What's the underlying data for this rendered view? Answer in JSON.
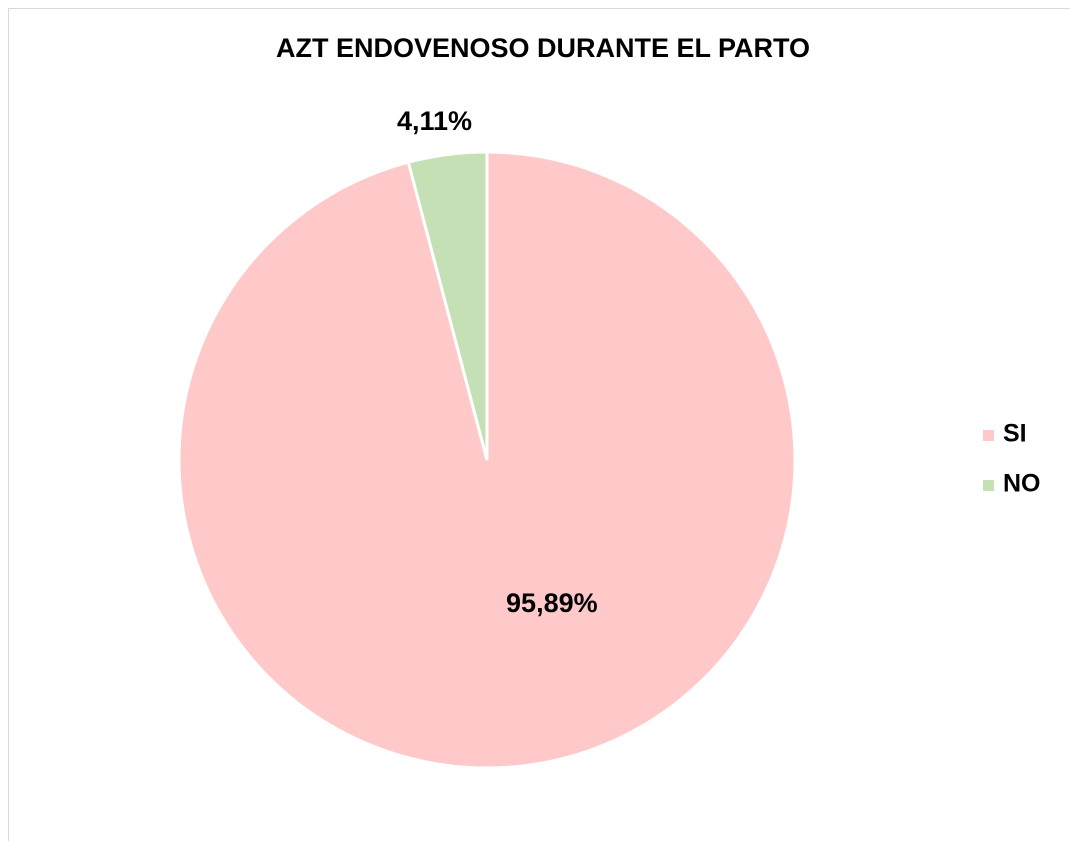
{
  "chart_data": {
    "type": "pie",
    "title": "AZT ENDOVENOSO DURANTE EL PARTO",
    "categories": [
      "SI",
      "NO"
    ],
    "values": [
      95.89,
      4.11
    ],
    "value_labels": [
      "95,89%",
      "4,11%"
    ],
    "colors": [
      "#ffc9c9",
      "#c5e0b4"
    ],
    "legend": "right"
  }
}
